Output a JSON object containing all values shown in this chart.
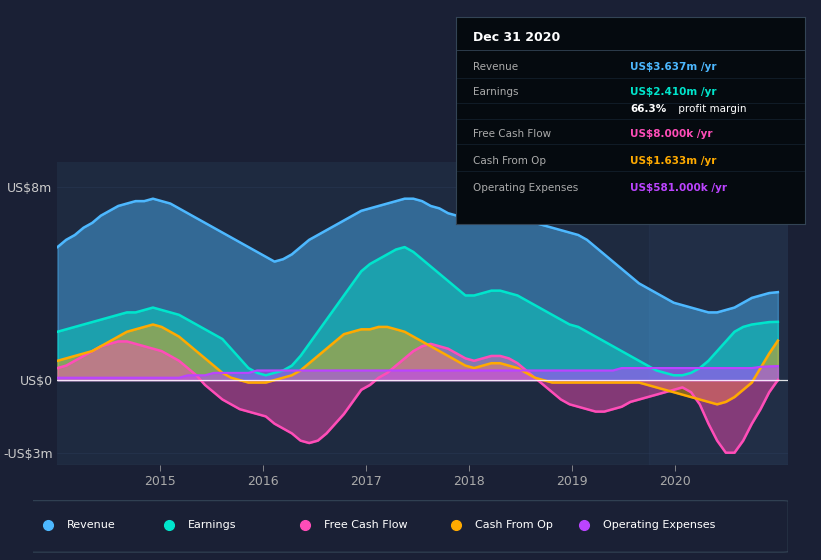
{
  "bg_color": "#1a2035",
  "plot_bg_color": "#1e2a40",
  "title": "Dec 31 2020",
  "info_box_rows": [
    {
      "label": "Revenue",
      "value": "US$3.637m /yr",
      "color": "#4db8ff"
    },
    {
      "label": "Earnings",
      "value": "US$2.410m /yr",
      "color": "#00e5cc"
    },
    {
      "label": "",
      "value": "66.3% profit margin",
      "color": "#ffffff"
    },
    {
      "label": "Free Cash Flow",
      "value": "US$8.000k /yr",
      "color": "#ff4db8"
    },
    {
      "label": "Cash From Op",
      "value": "US$1.633m /yr",
      "color": "#ffaa00"
    },
    {
      "label": "Operating Expenses",
      "value": "US$581.000k /yr",
      "color": "#bb44ff"
    }
  ],
  "ylim": [
    -3500000,
    9000000
  ],
  "revenue_color": "#4db8ff",
  "earnings_color": "#00e5cc",
  "cashflow_color": "#ff4db8",
  "cashfromop_color": "#ffaa00",
  "opex_color": "#bb44ff",
  "legend": [
    {
      "label": "Revenue",
      "color": "#4db8ff"
    },
    {
      "label": "Earnings",
      "color": "#00e5cc"
    },
    {
      "label": "Free Cash Flow",
      "color": "#ff4db8"
    },
    {
      "label": "Cash From Op",
      "color": "#ffaa00"
    },
    {
      "label": "Operating Expenses",
      "color": "#bb44ff"
    }
  ]
}
